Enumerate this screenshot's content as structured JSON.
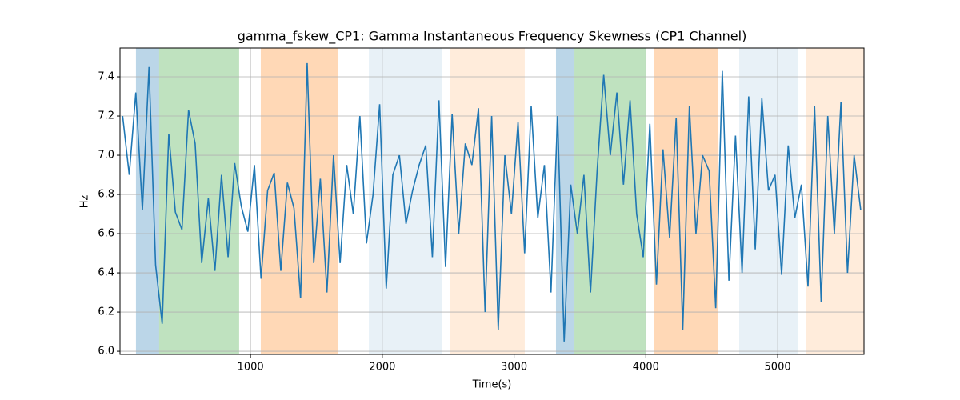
{
  "chart_data": {
    "type": "line",
    "title": "gamma_fskew_CP1: Gamma Instantaneous Frequency Skewness (CP1 Channel)",
    "xlabel": "Time(s)",
    "ylabel": "Hz",
    "x": [
      30,
      80,
      130,
      180,
      230,
      280,
      330,
      380,
      430,
      480,
      530,
      580,
      630,
      680,
      730,
      780,
      830,
      880,
      930,
      980,
      1030,
      1080,
      1130,
      1180,
      1230,
      1280,
      1330,
      1380,
      1430,
      1480,
      1530,
      1580,
      1630,
      1680,
      1730,
      1780,
      1830,
      1880,
      1930,
      1980,
      2030,
      2080,
      2130,
      2180,
      2230,
      2280,
      2330,
      2380,
      2430,
      2480,
      2530,
      2580,
      2630,
      2680,
      2730,
      2780,
      2830,
      2880,
      2930,
      2980,
      3030,
      3080,
      3130,
      3180,
      3230,
      3280,
      3330,
      3380,
      3430,
      3480,
      3530,
      3580,
      3630,
      3680,
      3730,
      3780,
      3830,
      3880,
      3930,
      3980,
      4030,
      4080,
      4130,
      4180,
      4230,
      4280,
      4330,
      4380,
      4430,
      4480,
      4530,
      4580,
      4630,
      4680,
      4730,
      4780,
      4830,
      4880,
      4930,
      4980,
      5030,
      5080,
      5130,
      5180,
      5230,
      5280,
      5330,
      5380,
      5430,
      5480,
      5530,
      5580,
      5630
    ],
    "series": [
      {
        "name": "gamma_fskew_CP1",
        "color": "#1f77b4",
        "values": [
          7.2,
          6.9,
          7.32,
          6.72,
          7.45,
          6.44,
          6.14,
          7.11,
          6.71,
          6.62,
          7.23,
          7.06,
          6.45,
          6.78,
          6.41,
          6.9,
          6.48,
          6.96,
          6.74,
          6.61,
          6.95,
          6.37,
          6.82,
          6.91,
          6.41,
          6.86,
          6.73,
          6.27,
          7.47,
          6.45,
          6.88,
          6.3,
          7.0,
          6.45,
          6.95,
          6.7,
          7.2,
          6.55,
          6.8,
          7.26,
          6.32,
          6.9,
          7.0,
          6.65,
          6.82,
          6.95,
          7.05,
          6.48,
          7.28,
          6.43,
          7.21,
          6.6,
          7.06,
          6.95,
          7.24,
          6.2,
          7.2,
          6.11,
          7.0,
          6.7,
          7.17,
          6.5,
          7.25,
          6.68,
          6.95,
          6.3,
          7.2,
          6.05,
          6.85,
          6.6,
          6.9,
          6.3,
          6.92,
          7.41,
          7.0,
          7.32,
          6.85,
          7.28,
          6.7,
          6.48,
          7.16,
          6.34,
          7.03,
          6.58,
          7.19,
          6.11,
          7.25,
          6.6,
          7.0,
          6.92,
          6.22,
          7.43,
          6.36,
          7.1,
          6.4,
          7.3,
          6.52,
          7.29,
          6.82,
          6.9,
          6.39,
          7.05,
          6.68,
          6.85,
          6.33,
          7.25,
          6.25,
          7.2,
          6.6,
          7.27,
          6.4,
          7.0,
          6.72
        ]
      }
    ],
    "spans": [
      {
        "x": [
          131,
          307
        ],
        "color": "#1f77b4",
        "alpha": 0.3
      },
      {
        "x": [
          307,
          914
        ],
        "color": "#2ca02c",
        "alpha": 0.3
      },
      {
        "x": [
          1078,
          1667
        ],
        "color": "#ff7f0e",
        "alpha": 0.3
      },
      {
        "x": [
          1898,
          2456
        ],
        "color": "#1f77b4",
        "alpha": 0.1
      },
      {
        "x": [
          2511,
          3081
        ],
        "color": "#ff7f0e",
        "alpha": 0.15
      },
      {
        "x": [
          3318,
          3458
        ],
        "color": "#1f77b4",
        "alpha": 0.3
      },
      {
        "x": [
          3458,
          3998
        ],
        "color": "#2ca02c",
        "alpha": 0.3
      },
      {
        "x": [
          4059,
          4550
        ],
        "color": "#ff7f0e",
        "alpha": 0.3
      },
      {
        "x": [
          4708,
          5151
        ],
        "color": "#1f77b4",
        "alpha": 0.1
      },
      {
        "x": [
          5212,
          5655
        ],
        "color": "#ff7f0e",
        "alpha": 0.15
      }
    ],
    "xlim": [
      10,
      5655
    ],
    "ylim": [
      5.984,
      7.547
    ],
    "xticks": [
      1000,
      2000,
      3000,
      4000,
      5000
    ],
    "yticks": [
      {
        "value": 6,
        "label": "6.0"
      },
      6.2,
      6.4,
      6.6,
      6.8,
      {
        "value": 7,
        "label": "7.0"
      },
      7.2,
      7.4
    ],
    "grid": true
  }
}
